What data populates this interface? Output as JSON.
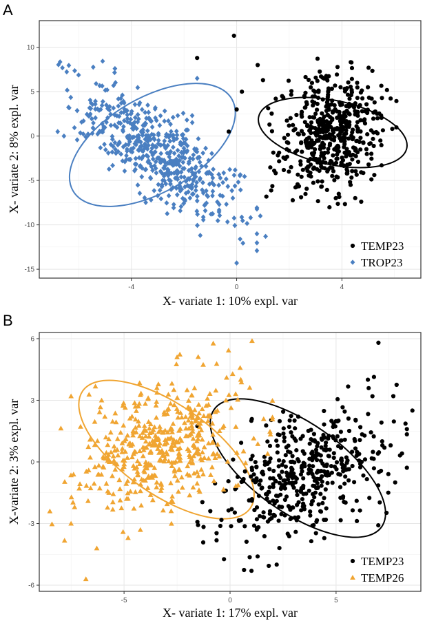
{
  "chart_data": [
    {
      "type": "scatter",
      "panel_label": "A",
      "xlabel": "X- variate 1: 10% expl. var",
      "ylabel": "X- variate 2: 8% expl. var",
      "xlim": [
        -7.5,
        7
      ],
      "ylim": [
        -16,
        13
      ],
      "x_ticks": [
        -4,
        0,
        4
      ],
      "y_ticks": [
        10,
        5,
        0,
        -5,
        -10,
        -15
      ],
      "grid": true,
      "legend_position": "bottom-right",
      "series": [
        {
          "name": "TEMP23",
          "color": "#000000",
          "marker": "circle",
          "n_points": 520,
          "center": [
            3.6,
            0.5
          ],
          "spread": [
            0.95,
            3.3
          ],
          "correlation": 0.15,
          "ellipse": {
            "center": [
              3.65,
              0.4
            ],
            "rx": 2.1,
            "ry": 9.9,
            "angle_deg": 78
          },
          "outliers": [
            [
              -0.1,
              11.3
            ],
            [
              -1.5,
              8.8
            ],
            [
              0.2,
              5.0
            ],
            [
              0.0,
              3.0
            ],
            [
              -0.3,
              0.5
            ],
            [
              0.8,
              8.0
            ],
            [
              1.0,
              6.3
            ]
          ]
        },
        {
          "name": "TROP23",
          "color": "#4a7fc1",
          "marker": "diamond",
          "n_points": 560,
          "center": [
            -3.0,
            -1.8
          ],
          "spread": [
            1.45,
            3.6
          ],
          "correlation": -0.72,
          "ellipse": {
            "center": [
              -3.2,
              -1.0
            ],
            "rx": 3.1,
            "ry": 12.0,
            "angle_deg": -60
          },
          "outliers": [
            [
              0.0,
              -14.3
            ],
            [
              1.1,
              -11.3
            ],
            [
              -6.8,
              0.5
            ],
            [
              0.9,
              -9.0
            ],
            [
              -1.5,
              6.5
            ]
          ]
        }
      ]
    },
    {
      "type": "scatter",
      "panel_label": "B",
      "xlabel": "X- variate 1: 17% expl. var",
      "ylabel": "X-variate 2: 3% expl. var",
      "xlim": [
        -9,
        9
      ],
      "ylim": [
        -6.3,
        6.3
      ],
      "x_ticks": [
        -5,
        0,
        5
      ],
      "y_ticks": [
        6,
        3,
        0,
        -3,
        -6
      ],
      "grid": true,
      "legend_position": "bottom-right",
      "series": [
        {
          "name": "TEMP23",
          "color": "#000000",
          "marker": "circle",
          "n_points": 470,
          "center": [
            3.4,
            -0.7
          ],
          "spread": [
            1.9,
            1.6
          ],
          "correlation": 0.35,
          "ellipse": {
            "center": [
              3.2,
              -0.3
            ],
            "rx": 4.9,
            "ry": 4.3,
            "angle_deg": -35
          },
          "outliers": [
            [
              7.0,
              5.8
            ],
            [
              8.6,
              2.5
            ],
            [
              1.3,
              -4.6
            ],
            [
              2.2,
              -5.0
            ],
            [
              7.7,
              3.2
            ],
            [
              6.5,
              4.0
            ]
          ]
        },
        {
          "name": "TEMP26",
          "color": "#f0a532",
          "marker": "triangle",
          "n_points": 470,
          "center": [
            -3.2,
            0.9
          ],
          "spread": [
            2.0,
            1.7
          ],
          "correlation": 0.4,
          "ellipse": {
            "center": [
              -3.0,
              0.6
            ],
            "rx": 4.9,
            "ry": 4.3,
            "angle_deg": -35
          },
          "outliers": [
            [
              -6.8,
              -5.7
            ],
            [
              -8.5,
              -2.4
            ],
            [
              -2.5,
              5.1
            ],
            [
              -7.5,
              -3.0
            ],
            [
              -7.5,
              3.2
            ]
          ]
        }
      ]
    }
  ]
}
